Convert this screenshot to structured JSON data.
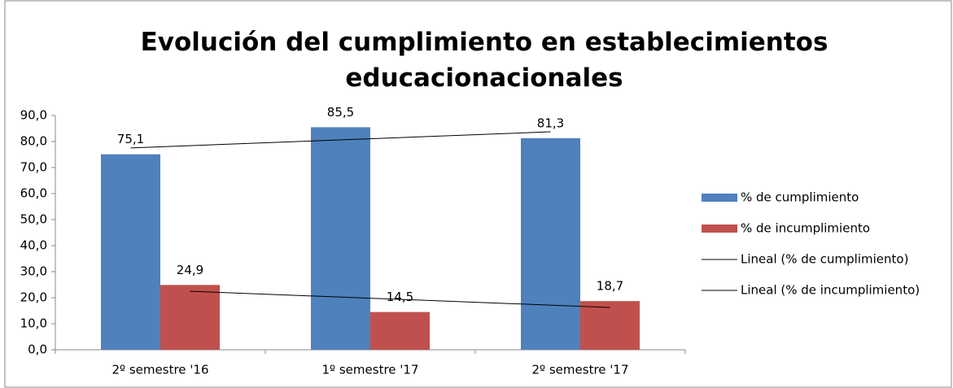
{
  "chart_data": {
    "type": "bar",
    "title": "Evolución del cumplimiento en establecimientos educacionacionales",
    "categories": [
      "2º semestre '16",
      "1º semestre '17",
      "2º semestre '17"
    ],
    "series": [
      {
        "name": "% de cumplimiento",
        "color": "#4f81bd",
        "values": [
          75.1,
          85.5,
          81.3
        ],
        "value_labels": [
          "75,1",
          "85,5",
          "81,3"
        ]
      },
      {
        "name": "% de incumplimiento",
        "color": "#c0504d",
        "values": [
          24.9,
          14.5,
          18.7
        ],
        "value_labels": [
          "24,9",
          "14,5",
          "18,7"
        ]
      }
    ],
    "trendlines": [
      {
        "name": "Lineal (% de cumplimiento)",
        "series": 0,
        "color": "#000000"
      },
      {
        "name": "Lineal (% de incumplimiento)",
        "series": 1,
        "color": "#000000"
      }
    ],
    "ylim": [
      0,
      90
    ],
    "yticks": [
      {
        "value": 0,
        "label": "0,0"
      },
      {
        "value": 10,
        "label": "10,0"
      },
      {
        "value": 20,
        "label": "20,0"
      },
      {
        "value": 30,
        "label": "30,0"
      },
      {
        "value": 40,
        "label": "40,0"
      },
      {
        "value": 50,
        "label": "50,0"
      },
      {
        "value": 60,
        "label": "60,0"
      },
      {
        "value": 70,
        "label": "70,0"
      },
      {
        "value": 80,
        "label": "80,0"
      },
      {
        "value": 90,
        "label": "90,0"
      }
    ],
    "grid": false,
    "legend": "right"
  }
}
